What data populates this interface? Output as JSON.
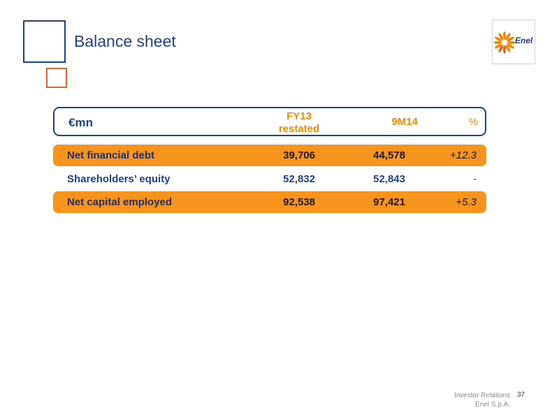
{
  "slide": {
    "title": "Balance sheet"
  },
  "logo": {
    "text": "Enel",
    "color": "#f08a00"
  },
  "table": {
    "header": {
      "unit": "€mn",
      "col1": "FY13\nrestated",
      "col1_line1": "FY13",
      "col1_line2": "restated",
      "col2": "9M14",
      "col3": "%"
    },
    "rows": [
      {
        "label": "Net financial debt",
        "fy13": "39,706",
        "m9_14": "44,578",
        "pct": "+12.3",
        "highlight": true
      },
      {
        "label": "Shareholders’ equity",
        "fy13": "52,832",
        "m9_14": "52,843",
        "pct": "-",
        "highlight": false
      },
      {
        "label": "Net capital employed",
        "fy13": "92,538",
        "m9_14": "97,421",
        "pct": "+5.3",
        "highlight": true
      }
    ]
  },
  "footer": {
    "line1": "Investor Relations",
    "line2": "Enel S.p.A.",
    "page": "37"
  },
  "colors": {
    "blue": "#1f3f94",
    "orange": "#f7941d",
    "accent_orange": "#e8641e"
  }
}
